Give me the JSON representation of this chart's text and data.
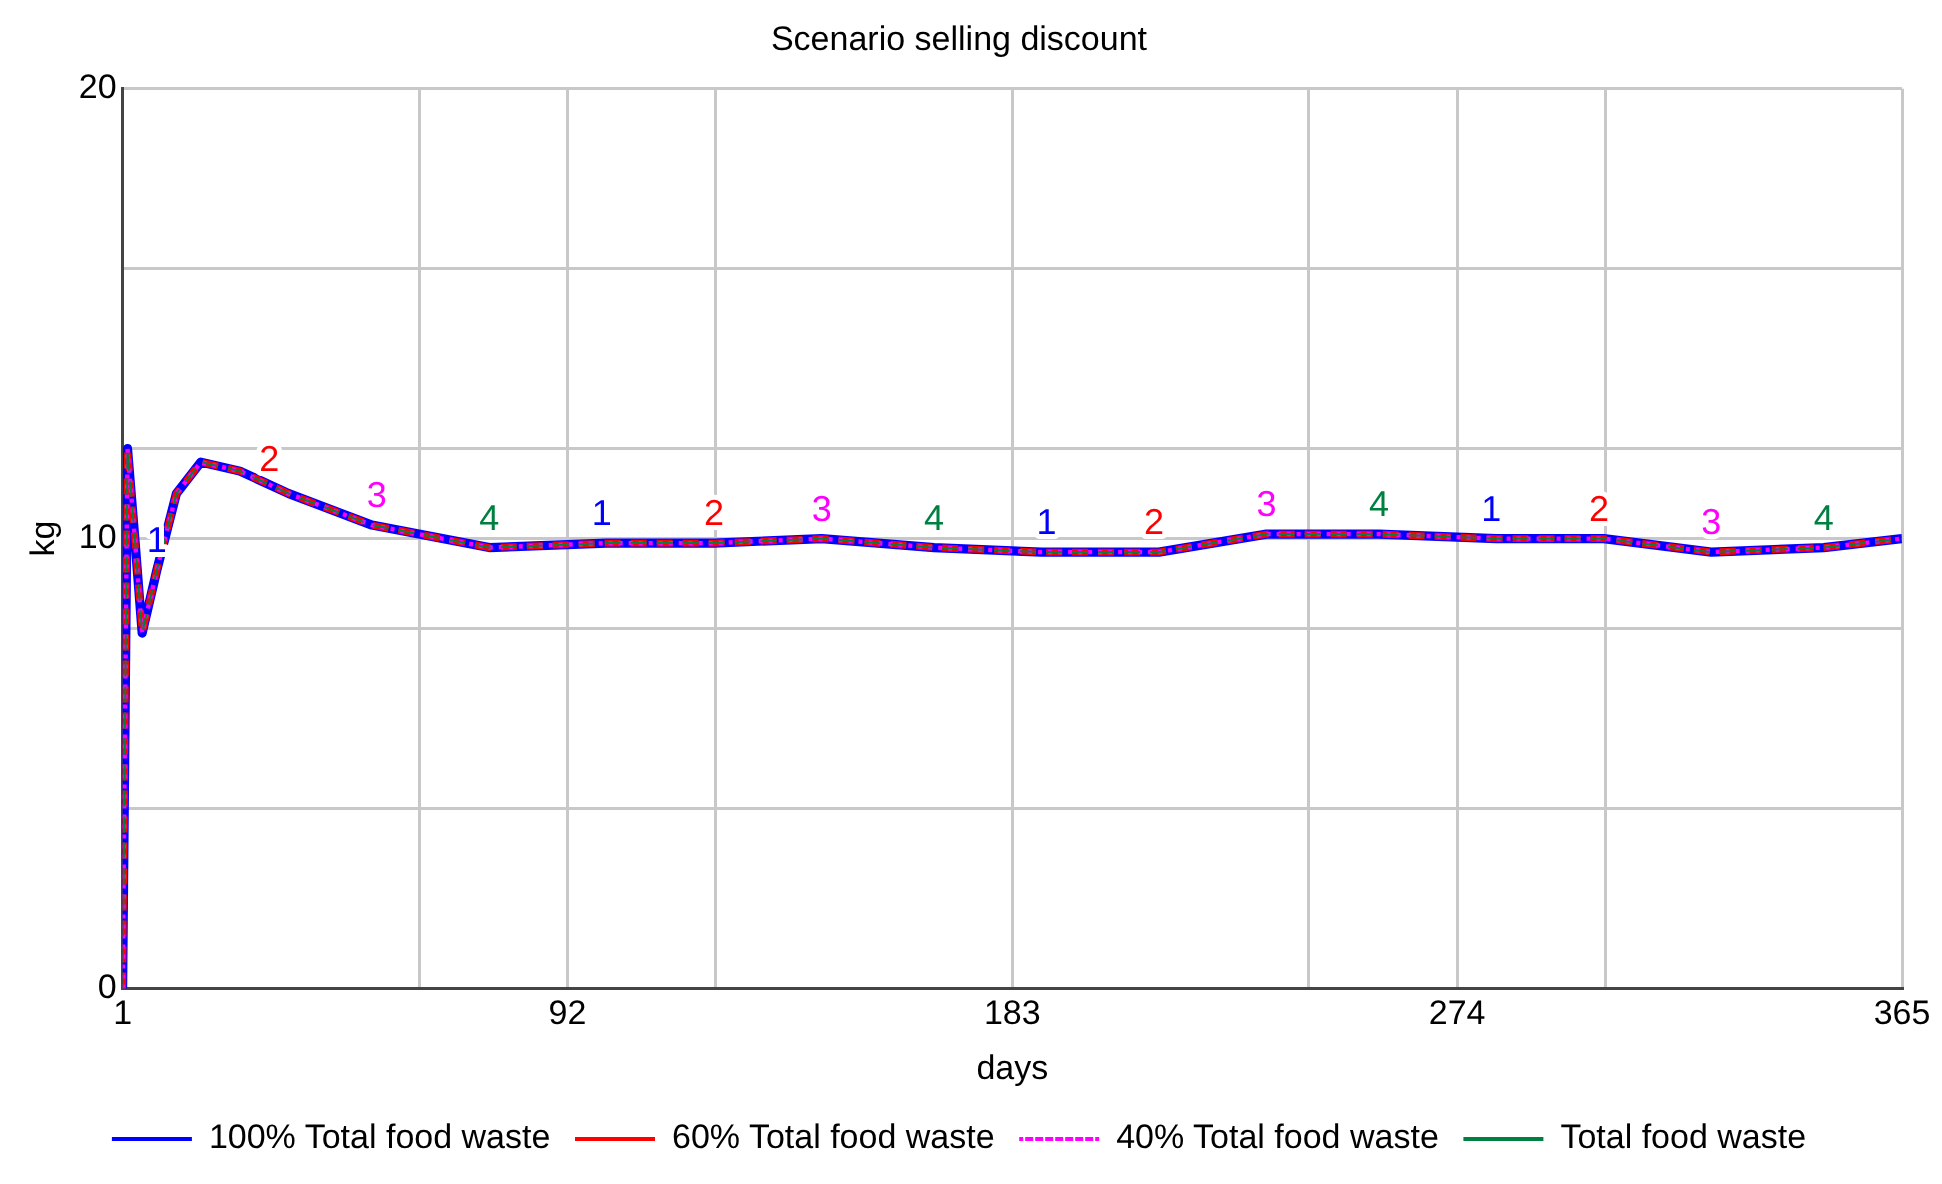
{
  "chart_data": {
    "type": "line",
    "title": "Scenario selling discount",
    "xlabel": "days",
    "ylabel": "kg",
    "x": [
      1,
      1.5,
      2,
      3.5,
      5,
      8,
      12,
      17,
      25,
      35,
      52,
      76,
      100,
      122,
      144,
      167,
      189,
      213,
      235,
      258,
      282,
      304,
      326,
      349,
      365
    ],
    "series": [
      {
        "name": "100% Total food waste",
        "color": "#0000ff",
        "line_style": "solid",
        "values": [
          0,
          6,
          12,
          10,
          7.9,
          9.3,
          11,
          11.7,
          11.5,
          11,
          10.3,
          9.8,
          9.9,
          9.9,
          10,
          9.8,
          9.7,
          9.7,
          10.1,
          10.1,
          10,
          10,
          9.7,
          9.8,
          10
        ]
      },
      {
        "name": "60% Total food waste",
        "color": "#ff0000",
        "line_style": "dashed",
        "values": [
          0,
          6,
          12,
          10,
          7.9,
          9.3,
          11,
          11.7,
          11.5,
          11,
          10.3,
          9.8,
          9.9,
          9.9,
          10,
          9.8,
          9.7,
          9.7,
          10.1,
          10.1,
          10,
          10,
          9.7,
          9.8,
          10
        ]
      },
      {
        "name": "40% Total food waste",
        "color": "#ff00ff",
        "line_style": "dotted",
        "values": [
          0,
          6,
          12,
          10,
          7.9,
          9.3,
          11,
          11.7,
          11.5,
          11,
          10.3,
          9.8,
          9.9,
          9.9,
          10,
          9.8,
          9.7,
          9.7,
          10.1,
          10.1,
          10,
          10,
          9.7,
          9.8,
          10
        ]
      },
      {
        "name": "Total food waste",
        "color": "#008040",
        "line_style": "dashed",
        "values": [
          0,
          6,
          12,
          10,
          7.9,
          9.3,
          11,
          11.7,
          11.5,
          11,
          10.3,
          9.8,
          9.9,
          9.9,
          10,
          9.8,
          9.7,
          9.7,
          10.1,
          10.1,
          10,
          10,
          9.7,
          9.8,
          10
        ]
      }
    ],
    "annotations": [
      {
        "text": "1",
        "x": 8,
        "y": 9.3
      },
      {
        "text": "2",
        "x": 31,
        "y": 11.1
      },
      {
        "text": "3",
        "x": 53,
        "y": 10.3
      },
      {
        "text": "4",
        "x": 76,
        "y": 9.8
      },
      {
        "text": "1",
        "x": 99,
        "y": 9.9
      },
      {
        "text": "2",
        "x": 122,
        "y": 9.9
      },
      {
        "text": "3",
        "x": 144,
        "y": 10
      },
      {
        "text": "4",
        "x": 167,
        "y": 9.8
      },
      {
        "text": "1",
        "x": 190,
        "y": 9.7
      },
      {
        "text": "2",
        "x": 212,
        "y": 9.7
      },
      {
        "text": "3",
        "x": 235,
        "y": 10.1
      },
      {
        "text": "4",
        "x": 258,
        "y": 10.1
      },
      {
        "text": "1",
        "x": 281,
        "y": 10
      },
      {
        "text": "2",
        "x": 303,
        "y": 10
      },
      {
        "text": "3",
        "x": 326,
        "y": 9.7
      },
      {
        "text": "4",
        "x": 349,
        "y": 9.8
      }
    ],
    "xlim": [
      1,
      365
    ],
    "xticks": [
      1,
      {
        "value": 61.67,
        "label": null
      },
      92,
      {
        "value": 122.33,
        "label": null
      },
      183,
      {
        "value": 243.67,
        "label": null
      },
      274,
      {
        "value": 304.33,
        "label": null
      },
      365
    ],
    "ylim": [
      0,
      20
    ],
    "yticks": [
      0,
      {
        "value": 4,
        "label": null
      },
      {
        "value": 8,
        "label": null
      },
      10,
      {
        "value": 12,
        "label": null
      },
      {
        "value": 16,
        "label": null
      },
      20
    ],
    "grid": true,
    "legend": "bottom",
    "marker": "none"
  }
}
